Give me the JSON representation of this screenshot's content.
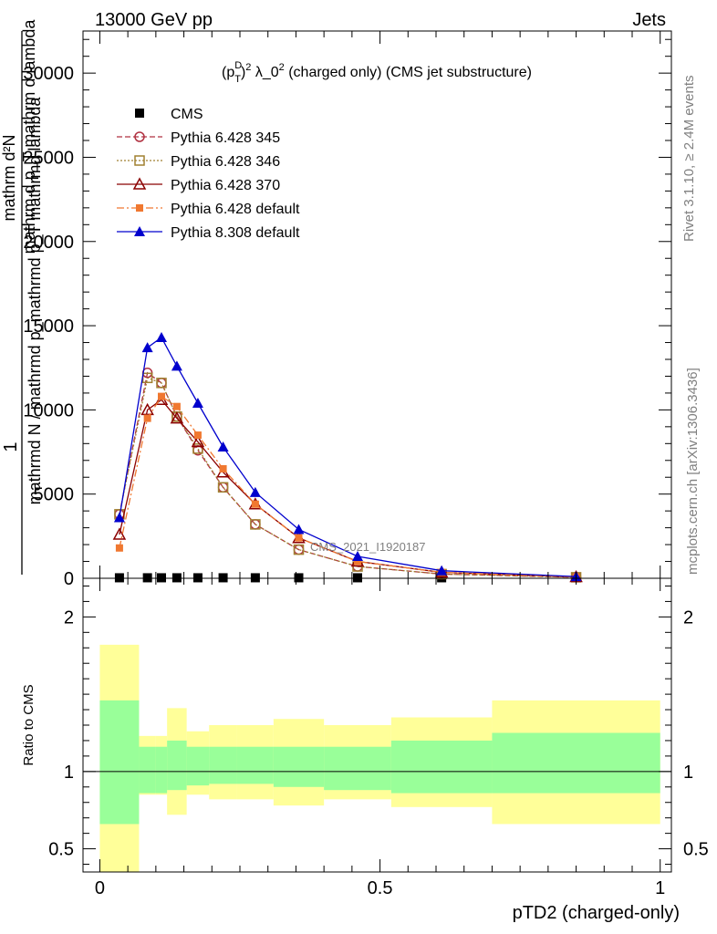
{
  "header": {
    "energy": "13000 GeV pp",
    "category": "Jets"
  },
  "side_labels": {
    "rivet": "Rivet 3.1.10, ≥ 2.4M events",
    "mcplots": "mcplots.cern.ch [arXiv:1306.3436]"
  },
  "analysis_label": "CMS_2021_I1920187",
  "chart_data": [
    {
      "type": "line",
      "title": "(p_T^D)^2 λ_0^2 (charged only) (CMS jet substructure)",
      "title_parts": {
        "p": "(p",
        "sub": "T",
        "sup": "D",
        "close": ")",
        "sq": "2",
        "lam": " λ_0",
        "sq2": "2",
        "rest": " (charged only) (CMS jet substructure)"
      },
      "ylabel_fraction": {
        "numerator": "1",
        "denominator": "mathrmd N / mathrmd p_mathrmd p_T mathrmd lambda"
      },
      "ylabel_overlay": {
        "top": "mathrm d²N",
        "bottom": "mathrm d p_T mathrm d lambda"
      },
      "xlim": [
        -0.03,
        1.02
      ],
      "ylim": [
        0,
        32500
      ],
      "y_ticks": [
        0,
        5000,
        10000,
        15000,
        20000,
        25000,
        30000
      ],
      "y_tick_labels": [
        "0",
        "5000",
        "10000",
        "15000",
        "20000",
        "25000",
        "30000"
      ],
      "bin_edges": [
        0.0,
        0.07,
        0.1,
        0.12,
        0.155,
        0.195,
        0.245,
        0.31,
        0.4,
        0.52,
        0.7,
        1.0
      ],
      "x": [
        0.035,
        0.085,
        0.11,
        0.1375,
        0.175,
        0.22,
        0.2775,
        0.355,
        0.46,
        0.61,
        0.85
      ],
      "series": [
        {
          "name": "CMS",
          "color": "#000000",
          "marker": "square",
          "line": "none",
          "values": [
            30,
            30,
            30,
            30,
            30,
            30,
            30,
            30,
            30,
            30,
            30
          ]
        },
        {
          "name": "Pythia 6.428 345",
          "color": "#b03040",
          "marker": "open-circle",
          "line": "dashed",
          "values": [
            3800,
            12200,
            11600,
            9600,
            7600,
            5400,
            3200,
            1700,
            700,
            250,
            60
          ]
        },
        {
          "name": "Pythia 6.428 346",
          "color": "#a08030",
          "marker": "open-square",
          "line": "dotted",
          "values": [
            3800,
            11900,
            11600,
            9600,
            7700,
            5400,
            3200,
            1700,
            700,
            250,
            60
          ]
        },
        {
          "name": "Pythia 6.428 370",
          "color": "#8b0000",
          "marker": "open-triangle",
          "line": "solid",
          "values": [
            2600,
            10000,
            10600,
            9500,
            8100,
            6300,
            4400,
            2400,
            1000,
            350,
            80
          ]
        },
        {
          "name": "Pythia 6.428 default",
          "color": "#f07830",
          "marker": "filled-square",
          "line": "dashdot",
          "values": [
            1800,
            9500,
            10800,
            10200,
            8500,
            6500,
            4400,
            2400,
            1000,
            350,
            80
          ]
        },
        {
          "name": "Pythia 8.308 default",
          "color": "#0000cd",
          "marker": "filled-triangle",
          "line": "solid",
          "values": [
            3600,
            13700,
            14300,
            12600,
            10400,
            7800,
            5100,
            2900,
            1300,
            450,
            100
          ]
        }
      ]
    },
    {
      "type": "area",
      "ylabel": "Ratio to CMS",
      "xlabel": "pTD2 (charged-only)",
      "xlim": [
        -0.03,
        1.02
      ],
      "ylim": [
        0.35,
        2.25
      ],
      "y_ticks": [
        0.5,
        1,
        2
      ],
      "y_tick_labels": [
        "0.5",
        "1",
        "2"
      ],
      "x_ticks": [
        0,
        0.5,
        1
      ],
      "x_tick_labels": [
        "0",
        "0.5",
        "1"
      ],
      "bin_edges": [
        0.0,
        0.07,
        0.1,
        0.12,
        0.155,
        0.195,
        0.245,
        0.31,
        0.4,
        0.52,
        0.7,
        1.0
      ],
      "stat_band": {
        "color": "#99ff99",
        "low": [
          0.66,
          0.86,
          0.86,
          0.88,
          0.91,
          0.92,
          0.92,
          0.9,
          0.88,
          0.86,
          0.86
        ],
        "high": [
          1.46,
          1.16,
          1.16,
          1.2,
          1.16,
          1.16,
          1.16,
          1.16,
          1.16,
          1.2,
          1.25
        ]
      },
      "syst_band": {
        "color": "#ffff99",
        "low": [
          0.35,
          0.85,
          0.85,
          0.72,
          0.85,
          0.82,
          0.82,
          0.78,
          0.82,
          0.77,
          0.66
        ],
        "high": [
          1.82,
          1.23,
          1.23,
          1.41,
          1.26,
          1.3,
          1.3,
          1.34,
          1.3,
          1.35,
          1.46
        ]
      },
      "reference_line": 1
    }
  ]
}
